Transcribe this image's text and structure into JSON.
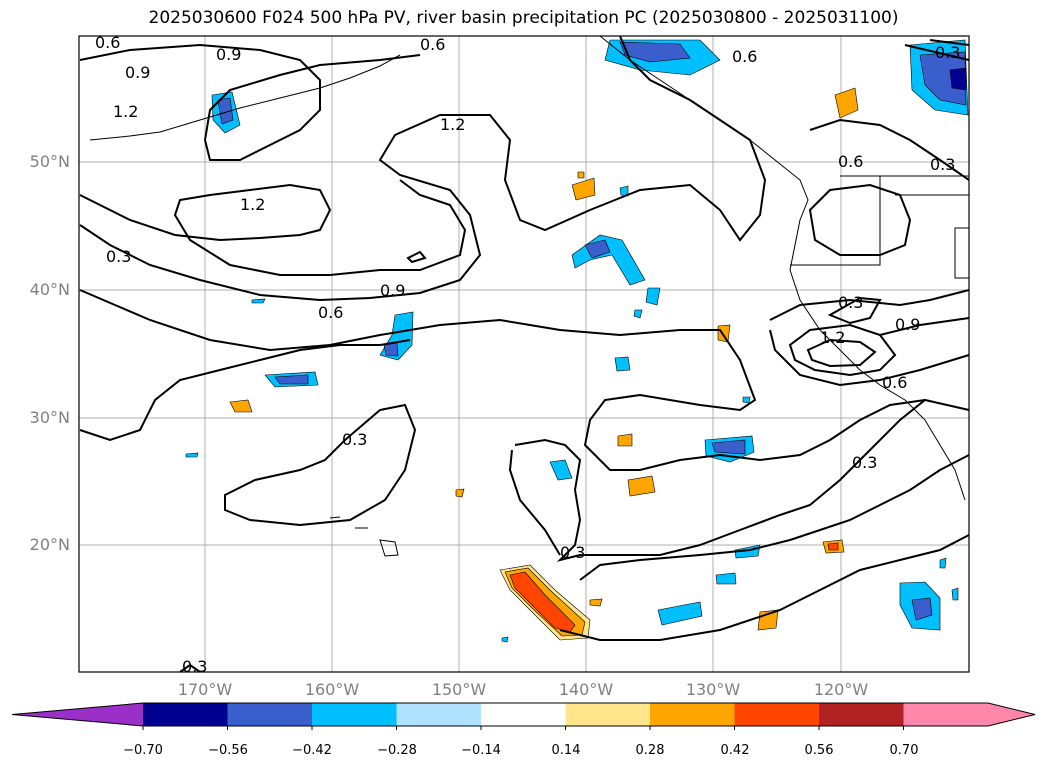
{
  "title": "2025030600 F024 500 hPa PV, river basin precipitation PC (2025030800 - 2025031100)",
  "latitude_labels": [
    "50°N",
    "40°N",
    "30°N",
    "20°N"
  ],
  "longitude_labels": [
    "170°W",
    "160°W",
    "150°W",
    "140°W",
    "130°W",
    "120°W"
  ],
  "contour_labels": [
    "0.6",
    "0.9",
    "1.2",
    "0.3",
    "0.6",
    "0.9",
    "1.2",
    "1.2",
    "0.3",
    "0.9",
    "0.6",
    "0.3",
    "0.3",
    "0.3",
    "0.6",
    "0.6",
    "0.3",
    "0.9",
    "1.2",
    "0.6",
    "0.3",
    "0.3"
  ],
  "colorbar": {
    "tick_labels": [
      "−0.70",
      "−0.56",
      "−0.42",
      "−0.28",
      "−0.14",
      "0.14",
      "0.28",
      "0.42",
      "0.56",
      "0.70"
    ],
    "colors": [
      "#9a30c8",
      "#000090",
      "#3a5fcd",
      "#00bfff",
      "#b0e2ff",
      "#ffffff",
      "#ffe68c",
      "#ffa500",
      "#ff4500",
      "#b22222",
      "#ff88aa",
      "#ff88aa"
    ]
  }
}
